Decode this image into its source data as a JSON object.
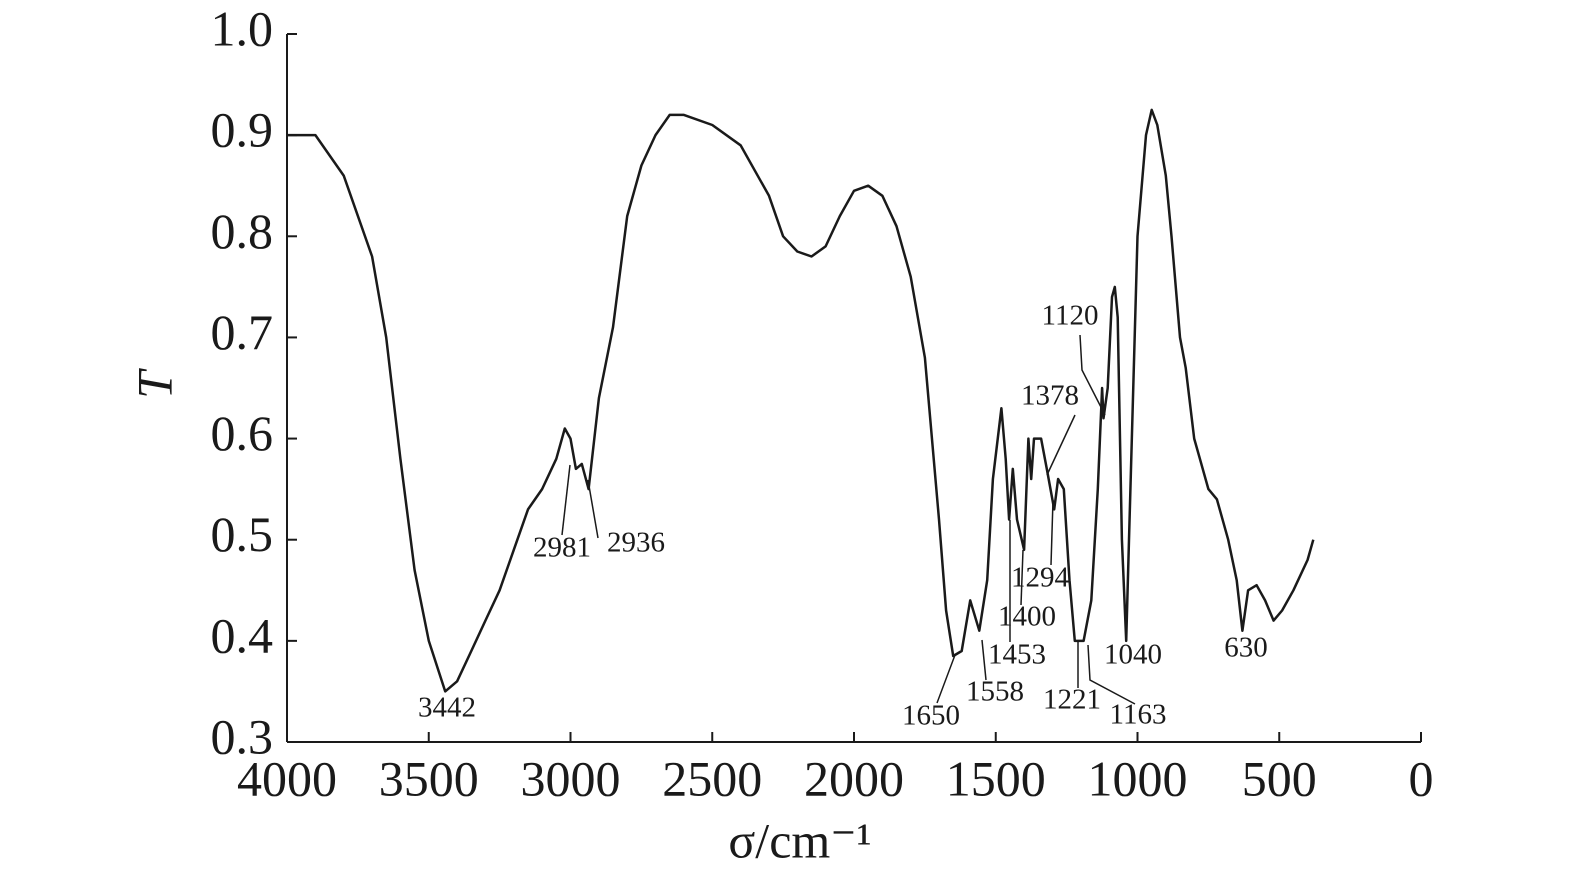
{
  "chart_data": {
    "type": "line",
    "xlabel": "σ/cm⁻¹",
    "ylabel": "T",
    "xlim": [
      4000,
      0
    ],
    "ylim": [
      0.3,
      1.0
    ],
    "xticks": [
      4000,
      3500,
      3000,
      2500,
      2000,
      1500,
      1000,
      500,
      0
    ],
    "yticks": [
      0.3,
      0.4,
      0.5,
      0.6,
      0.7,
      0.8,
      0.9,
      {
        "value": 1,
        "label": "1.0"
      }
    ],
    "color": "#1a1a1a",
    "x": [
      4000,
      3900,
      3800,
      3700,
      3650,
      3600,
      3550,
      3500,
      3442,
      3400,
      3350,
      3300,
      3250,
      3200,
      3150,
      3100,
      3050,
      3020,
      3000,
      2981,
      2960,
      2936,
      2900,
      2850,
      2800,
      2750,
      2700,
      2650,
      2600,
      2500,
      2400,
      2300,
      2250,
      2200,
      2150,
      2100,
      2050,
      2000,
      1950,
      1900,
      1850,
      1800,
      1750,
      1700,
      1675,
      1650,
      1620,
      1590,
      1558,
      1530,
      1510,
      1480,
      1465,
      1453,
      1440,
      1425,
      1400,
      1385,
      1375,
      1365,
      1340,
      1320,
      1294,
      1280,
      1260,
      1240,
      1221,
      1190,
      1163,
      1140,
      1125,
      1120,
      1105,
      1090,
      1080,
      1070,
      1055,
      1040,
      1030,
      1000,
      970,
      950,
      930,
      900,
      880,
      850,
      830,
      800,
      780,
      750,
      720,
      680,
      650,
      630,
      610,
      580,
      550,
      520,
      490,
      450,
      400,
      380
    ],
    "values": [
      0.9,
      0.9,
      0.86,
      0.78,
      0.7,
      0.58,
      0.47,
      0.4,
      0.35,
      0.36,
      0.39,
      0.42,
      0.45,
      0.49,
      0.53,
      0.55,
      0.58,
      0.61,
      0.6,
      0.57,
      0.575,
      0.55,
      0.64,
      0.71,
      0.82,
      0.87,
      0.9,
      0.92,
      0.92,
      0.91,
      0.89,
      0.84,
      0.8,
      0.785,
      0.78,
      0.79,
      0.82,
      0.845,
      0.85,
      0.84,
      0.81,
      0.76,
      0.68,
      0.52,
      0.43,
      0.385,
      0.39,
      0.44,
      0.41,
      0.46,
      0.56,
      0.63,
      0.58,
      0.52,
      0.57,
      0.52,
      0.49,
      0.6,
      0.56,
      0.6,
      0.6,
      0.57,
      0.53,
      0.56,
      0.55,
      0.46,
      0.4,
      0.4,
      0.44,
      0.55,
      0.65,
      0.62,
      0.65,
      0.74,
      0.75,
      0.72,
      0.5,
      0.4,
      0.5,
      0.8,
      0.9,
      0.925,
      0.91,
      0.86,
      0.8,
      0.7,
      0.67,
      0.6,
      0.58,
      0.55,
      0.54,
      0.5,
      0.46,
      0.41,
      0.45,
      0.455,
      0.44,
      0.42,
      0.43,
      0.45,
      0.48,
      0.5
    ],
    "annotations": [
      3442,
      2981,
      2936,
      1650,
      1558,
      1453,
      1400,
      1378,
      1294,
      1221,
      1163,
      1120,
      1040,
      630
    ]
  }
}
